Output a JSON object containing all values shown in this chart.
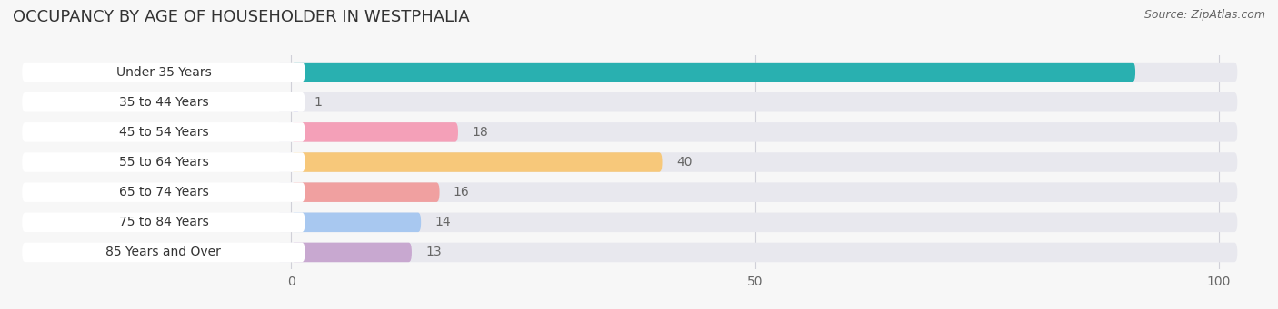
{
  "title": "OCCUPANCY BY AGE OF HOUSEHOLDER IN WESTPHALIA",
  "source": "Source: ZipAtlas.com",
  "categories": [
    "Under 35 Years",
    "35 to 44 Years",
    "45 to 54 Years",
    "55 to 64 Years",
    "65 to 74 Years",
    "75 to 84 Years",
    "85 Years and Over"
  ],
  "values": [
    91,
    1,
    18,
    40,
    16,
    14,
    13
  ],
  "colors": [
    "#29b0b0",
    "#b0b0e8",
    "#f4a0b8",
    "#f7c87a",
    "#f0a0a0",
    "#a8c8f0",
    "#c8a8d0"
  ],
  "xlim_left": -30,
  "xlim_right": 105,
  "bar_height": 0.65,
  "title_fontsize": 13,
  "source_fontsize": 9,
  "label_fontsize": 10,
  "value_fontsize": 10,
  "tick_fontsize": 10,
  "bg_color": "#f7f7f7",
  "bar_bg_color": "#e8e8ee",
  "pill_bg_color": "#ffffff",
  "value_color_91": "#29b0b0",
  "value_color_other": "#666666",
  "grid_color": "#d0d0d8"
}
